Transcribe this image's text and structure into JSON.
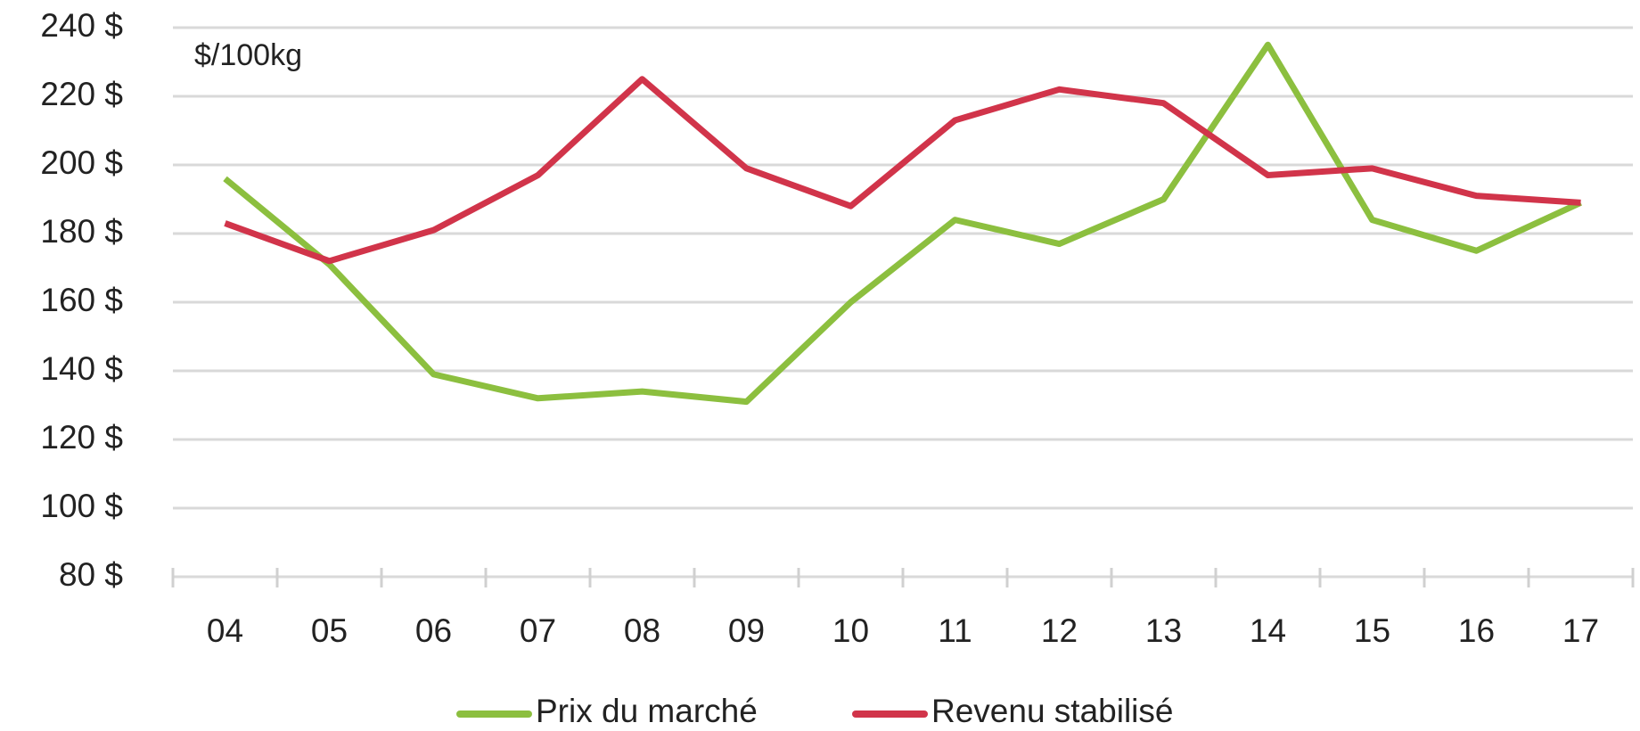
{
  "chart_data": {
    "type": "line",
    "annotation": "$/100kg",
    "categories": [
      "04",
      "05",
      "06",
      "07",
      "08",
      "09",
      "10",
      "11",
      "12",
      "13",
      "14",
      "15",
      "16",
      "17"
    ],
    "series": [
      {
        "name": "Prix du marché",
        "color": "#8cbf3f",
        "values": [
          196,
          171,
          139,
          132,
          134,
          131,
          160,
          184,
          177,
          190,
          235,
          184,
          175,
          189
        ]
      },
      {
        "name": "Revenu stabilisé",
        "color": "#d1344a",
        "values": [
          183,
          172,
          181,
          197,
          225,
          199,
          188,
          213,
          222,
          218,
          197,
          199,
          191,
          189
        ]
      }
    ],
    "ylim": [
      80,
      240
    ],
    "yticks": [
      {
        "value": 80,
        "label": "80 $"
      },
      {
        "value": 100,
        "label": "100 $"
      },
      {
        "value": 120,
        "label": "120 $"
      },
      {
        "value": 140,
        "label": "140 $"
      },
      {
        "value": 160,
        "label": "160 $"
      },
      {
        "value": 180,
        "label": "180 $"
      },
      {
        "value": 200,
        "label": "200 $"
      },
      {
        "value": 220,
        "label": "220 $"
      },
      {
        "value": 240,
        "label": "240 $"
      }
    ],
    "grid": true,
    "legend": "bottom"
  }
}
